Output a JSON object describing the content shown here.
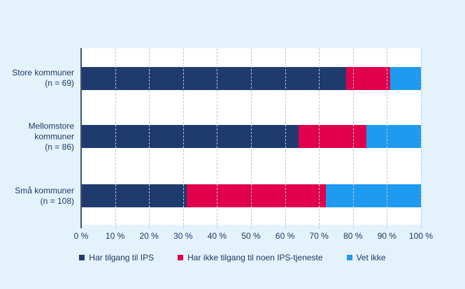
{
  "colors": {
    "background": "#E4F2FC",
    "plot_background": "#FFFFFF",
    "axis_line": "#44546A",
    "gridline": "#B7C3DE",
    "text": "#1F3864"
  },
  "chart_data": {
    "type": "bar",
    "orientation": "horizontal",
    "stacked": true,
    "title": "",
    "xlabel": "",
    "ylabel": "",
    "xlim": [
      0,
      100
    ],
    "xtick_step": 10,
    "grid": "vertical-dashed",
    "legend_position": "bottom",
    "categories": [
      "Store kommuner\n(n = 69)",
      "Mellomstore\nkommuner\n(n = 86)",
      "Små kommuner\n(n = 108)"
    ],
    "xticks": [
      "0 %",
      "10 %",
      "20 %",
      "30 %",
      "40 %",
      "50 %",
      "60 %",
      "70 %",
      "80 %",
      "90 %",
      "100 %"
    ],
    "series": [
      {
        "name": "Har tilgang til IPS",
        "color": "#1F3B6E",
        "values": [
          78,
          64,
          31
        ]
      },
      {
        "name": "Har ikke tilgang til noen IPS-tjeneste",
        "color": "#E0004C",
        "values": [
          13,
          20,
          41
        ]
      },
      {
        "name": "Vet ikke",
        "color": "#1E9BF0",
        "values": [
          9,
          16,
          28
        ]
      }
    ]
  }
}
